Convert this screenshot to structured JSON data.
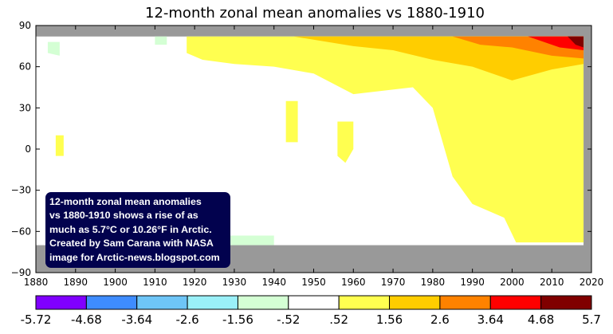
{
  "chart_data": {
    "type": "heatmap",
    "title": "12-month zonal mean anomalies vs 1880-1910",
    "x_ticks": [
      "1880",
      "1890",
      "1900",
      "1910",
      "1920",
      "1930",
      "1940",
      "1950",
      "1960",
      "1970",
      "1980",
      "1990",
      "2000",
      "2010",
      "2020"
    ],
    "y_ticks": [
      "90",
      "60",
      "30",
      "0",
      "−30",
      "−60",
      "−90"
    ],
    "xlim": [
      1880,
      2020
    ],
    "ylim": [
      -90,
      90
    ],
    "data_extent": {
      "years": [
        1880,
        2018
      ],
      "latitude": [
        -70,
        82
      ]
    },
    "colorbar": {
      "tick_labels": [
        "-5.72",
        "-4.68",
        "-3.64",
        "-2.6",
        "-1.56",
        "-.52",
        ".52",
        "1.56",
        "2.6",
        "3.64",
        "4.68",
        "5.7"
      ],
      "colors": [
        "#8000ff",
        "#3e8cff",
        "#6ec5f7",
        "#9af0f8",
        "#d4ffd4",
        "#ffffff",
        "#ffff50",
        "#ffcd00",
        "#ff8200",
        "#ff0000",
        "#800000"
      ]
    },
    "missing_color": "#999999",
    "annotation": [
      "12-month zonal mean anomalies",
      "vs 1880-1910 shows a rise of as",
      "much as 5.7°C or 10.26°F in Arctic.",
      "Created by Sam Carana with NASA",
      "image for Arctic-news.blogspot.com"
    ]
  }
}
